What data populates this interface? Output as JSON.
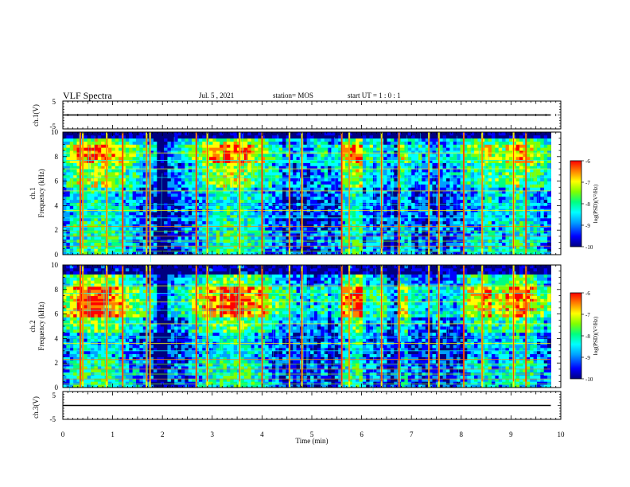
{
  "header": {
    "title": "VLF Spectra",
    "date": "Jul. 5 , 2021",
    "station": "station= MOS",
    "start": "start UT = 1 : 0 : 1"
  },
  "colors": {
    "spectrum": [
      "#000080",
      "#0000ff",
      "#00a0ff",
      "#00ffff",
      "#00ff80",
      "#80ff00",
      "#ffff00",
      "#ff8000",
      "#ff0000"
    ],
    "background": "#ffffff",
    "axis": "#000000"
  },
  "chart_data": [
    {
      "type": "line",
      "name": "ch1-waveform",
      "ylabel": "ch.1(V)",
      "ylim": [
        -5,
        5
      ],
      "yticks": [
        "5",
        "-5"
      ],
      "xlim": [
        0,
        10
      ],
      "series": [
        {
          "x": [
            0,
            9.8
          ],
          "values": [
            0,
            0
          ]
        }
      ]
    },
    {
      "type": "heatmap",
      "name": "ch1-spectrogram",
      "ylabel": "ch.1 Frequency (kHz)",
      "ylabel_lines": [
        "ch.1",
        "Frequency (kHz)"
      ],
      "ylim": [
        0,
        10
      ],
      "yticks": [
        "0",
        "2",
        "4",
        "6",
        "8",
        "10"
      ],
      "xlim": [
        0,
        10
      ],
      "colorbar": {
        "label": "log(PSD)(V²/Hz)",
        "range": [
          -10,
          -6
        ],
        "ticks": [
          "-6",
          "-7",
          "-8",
          "-9",
          "-10"
        ]
      }
    },
    {
      "type": "heatmap",
      "name": "ch2-spectrogram",
      "ylabel": "ch.2 Frequency (kHz)",
      "ylabel_lines": [
        "ch.2",
        "Frequency (kHz)"
      ],
      "ylim": [
        0,
        10
      ],
      "yticks": [
        "0",
        "2",
        "4",
        "6",
        "8",
        "10"
      ],
      "xlim": [
        0,
        10
      ],
      "colorbar": {
        "label": "log(PSD)(V²/Hz)",
        "range": [
          -10,
          -6
        ],
        "ticks": [
          "-6",
          "-7",
          "-8",
          "-9",
          "-10"
        ]
      }
    },
    {
      "type": "line",
      "name": "ch3-waveform",
      "ylabel": "ch.3(V)",
      "ylim": [
        -5,
        5
      ],
      "yticks": [
        "5",
        "-5"
      ],
      "xlim": [
        0,
        10
      ],
      "series": [
        {
          "x": [
            0,
            9.8
          ],
          "values": [
            0,
            0
          ]
        }
      ]
    }
  ],
  "xaxis": {
    "label": "Time (min)",
    "ticks": [
      "0",
      "1",
      "2",
      "3",
      "4",
      "5",
      "6",
      "7",
      "8",
      "9",
      "10"
    ]
  }
}
